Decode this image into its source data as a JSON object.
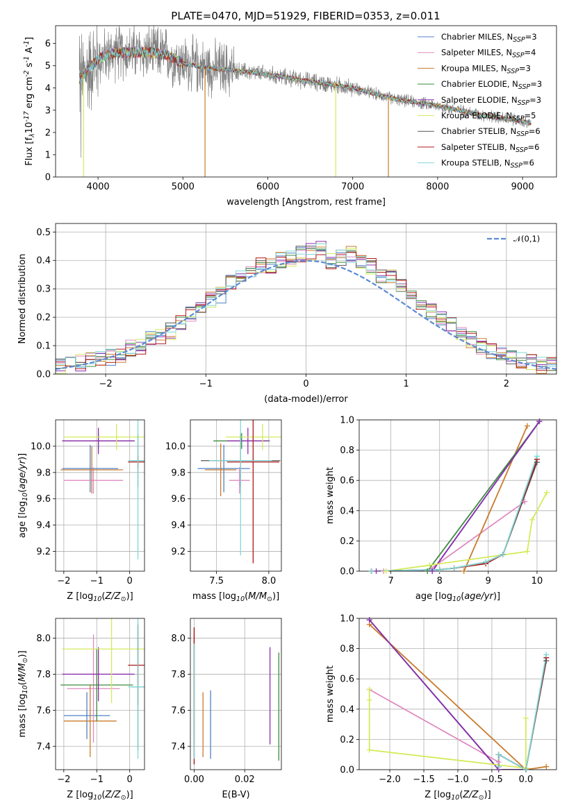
{
  "title": "PLATE=0470, MJD=51929, FIBERID=0353, z=0.011",
  "series_meta": [
    {
      "name": "Chabrier MILES, N$_{SSP}$=3",
      "color": "#4f80c8"
    },
    {
      "name": "Salpeter MILES, N$_{SSP}$=4",
      "color": "#e08ac0"
    },
    {
      "name": "Kroupa MILES, N$_{SSP}$=3",
      "color": "#c97a2a"
    },
    {
      "name": "Chabrier ELODIE, N$_{SSP}$=3",
      "color": "#3d8a3d"
    },
    {
      "name": "Salpeter ELODIE, N$_{SSP}$=3",
      "color": "#8e2cb0"
    },
    {
      "name": "Kroupa ELODIE, N$_{SSP}$=5",
      "color": "#d4ea5a"
    },
    {
      "name": "Chabrier STELIB, N$_{SSP}$=6",
      "color": "#555555"
    },
    {
      "name": "Salpeter STELIB, N$_{SSP}$=6",
      "color": "#b01818"
    },
    {
      "name": "Kroupa STELIB, N$_{SSP}$=6",
      "color": "#7fd8d8"
    }
  ],
  "chart_data": [
    {
      "id": "spectrum",
      "type": "line",
      "xlabel": "wavelength [Angstrom, rest frame]",
      "ylabel": "Flux [f$_\\lambda$10$^{-17}$ erg cm$^{-2}$ s$^{-1}$ A$^{-1}$]",
      "xlim": [
        3500,
        9400
      ],
      "ylim": [
        0,
        6.8
      ],
      "xticks": [
        4000,
        5000,
        6000,
        7000,
        8000,
        9000
      ],
      "yticks": [
        0,
        1,
        2,
        3,
        4,
        5,
        6
      ],
      "grid": false,
      "legend": "upper right",
      "data_color": "#808080",
      "data_trend": {
        "x": [
          3780,
          3900,
          4000,
          4200,
          4400,
          4600,
          4800,
          5000,
          5300,
          5600,
          6000,
          6500,
          7000,
          7500,
          8000,
          8500,
          9000,
          9100
        ],
        "y": [
          4.4,
          4.9,
          5.3,
          5.6,
          5.6,
          5.6,
          5.5,
          5.1,
          4.9,
          4.8,
          4.6,
          4.3,
          4.0,
          3.5,
          3.2,
          2.8,
          2.5,
          2.4
        ]
      },
      "model_spikes": [
        {
          "x": 3830,
          "color": "#d4ea5a"
        },
        {
          "x": 5260,
          "color": "#c97a2a"
        },
        {
          "x": 6800,
          "color": "#d4ea5a"
        },
        {
          "x": 7420,
          "color": "#c97a2a"
        }
      ]
    },
    {
      "id": "residuals",
      "type": "line",
      "xlabel": "(data-model)/error",
      "ylabel": "Normed distribution",
      "xlim": [
        -2.5,
        2.5
      ],
      "ylim": [
        0,
        0.53
      ],
      "xticks": [
        -2,
        -1,
        0,
        1,
        2
      ],
      "xticklabels": [
        "−2",
        "−1",
        "0",
        "1",
        "2"
      ],
      "yticks": [
        0.0,
        0.1,
        0.2,
        0.3,
        0.4,
        0.5
      ],
      "yticklabels": [
        "0.0",
        "0.1",
        "0.2",
        "0.3",
        "0.4",
        "0.5"
      ],
      "grid": true,
      "legend": "upper right",
      "gaussian_label": "$\\mathcal{N}(0,1)$",
      "gaussian_color": "#5b8ad4",
      "hist_bin_edges": [
        -2.5,
        -2.4,
        -2.3,
        -2.2,
        -2.1,
        -2.0,
        -1.9,
        -1.8,
        -1.7,
        -1.6,
        -1.5,
        -1.4,
        -1.3,
        -1.2,
        -1.1,
        -1.0,
        -0.9,
        -0.8,
        -0.7,
        -0.6,
        -0.5,
        -0.4,
        -0.3,
        -0.2,
        -0.1,
        0.0,
        0.1,
        0.2,
        0.3,
        0.4,
        0.5,
        0.6,
        0.7,
        0.8,
        0.9,
        1.0,
        1.1,
        1.2,
        1.3,
        1.4,
        1.5,
        1.6,
        1.7,
        1.8,
        1.9,
        2.0,
        2.1,
        2.2,
        2.3,
        2.4,
        2.5
      ],
      "hist_density": [
        0.03,
        0.03,
        0.04,
        0.05,
        0.06,
        0.06,
        0.07,
        0.09,
        0.1,
        0.12,
        0.13,
        0.15,
        0.18,
        0.21,
        0.24,
        0.26,
        0.28,
        0.32,
        0.35,
        0.36,
        0.38,
        0.38,
        0.4,
        0.41,
        0.42,
        0.43,
        0.44,
        0.4,
        0.41,
        0.42,
        0.4,
        0.38,
        0.35,
        0.34,
        0.31,
        0.27,
        0.25,
        0.22,
        0.2,
        0.17,
        0.14,
        0.12,
        0.1,
        0.08,
        0.07,
        0.06,
        0.05,
        0.04,
        0.03,
        0.03
      ]
    },
    {
      "id": "age-vs-Z",
      "type": "scatter",
      "xlabel": "Z [log$_{10}$($Z/Z_\\odot$)]",
      "ylabel": "age  [log$_{10}$($age/yr$)]",
      "xlim": [
        -2.25,
        0.45
      ],
      "ylim": [
        9.05,
        10.2
      ],
      "xticks": [
        -2,
        -1,
        0
      ],
      "xticklabels": [
        "−2",
        "−1",
        "0"
      ],
      "yticks": [
        9.2,
        9.4,
        9.6,
        9.8,
        10.0
      ],
      "yticklabels": [
        "9.2",
        "9.4",
        "9.6",
        "9.8",
        "10.0"
      ],
      "grid": true,
      "points": [
        {
          "s": 0,
          "x": -1.2,
          "y": 9.83,
          "xerr": 0.85,
          "yerr": 0.18
        },
        {
          "s": 1,
          "x": -1.1,
          "y": 9.74,
          "xerr": 0.9,
          "yerr": 0.1
        },
        {
          "s": 2,
          "x": -1.15,
          "y": 9.82,
          "xerr": 0.95,
          "yerr": 0.18
        },
        {
          "s": 3,
          "x": -0.95,
          "y": 10.04,
          "xerr": 1.1,
          "yerr": 0.06
        },
        {
          "s": 4,
          "x": -0.95,
          "y": 10.04,
          "xerr": 1.1,
          "yerr": 0.1
        },
        {
          "s": 5,
          "x": -0.4,
          "y": 10.07,
          "xerr": 1.6,
          "yerr": 0.1
        },
        {
          "s": 6,
          "x": 0.25,
          "y": 9.89,
          "xerr": 0.25,
          "yerr": 0.2
        },
        {
          "s": 7,
          "x": 0.25,
          "y": 9.88,
          "xerr": 0.3,
          "yerr": 0.05
        },
        {
          "s": 8,
          "x": 0.25,
          "y": 9.89,
          "xerr": 0.3,
          "yerr": 0.75
        }
      ]
    },
    {
      "id": "age-vs-mass",
      "type": "scatter",
      "xlabel": "mass [log$_{10}$($M/M_\\odot$)]",
      "ylabel": "",
      "xlim": [
        7.25,
        8.12
      ],
      "ylim": [
        9.05,
        10.2
      ],
      "xticks": [
        7.5,
        8.0
      ],
      "xticklabels": [
        "7.5",
        "8.0"
      ],
      "yticks": [
        9.2,
        9.4,
        9.6,
        9.8,
        10.0
      ],
      "yticklabels": [
        "9.2",
        "9.4",
        "9.6",
        "9.8",
        "10.0"
      ],
      "grid": true,
      "points": [
        {
          "s": 0,
          "x": 7.57,
          "y": 9.83,
          "xerr": 0.25,
          "yerr": 0.18
        },
        {
          "s": 1,
          "x": 7.72,
          "y": 9.74,
          "xerr": 0.1,
          "yerr": 0.1
        },
        {
          "s": 2,
          "x": 7.54,
          "y": 9.82,
          "xerr": 0.15,
          "yerr": 0.2
        },
        {
          "s": 3,
          "x": 7.74,
          "y": 10.04,
          "xerr": 0.27,
          "yerr": 0.06
        },
        {
          "s": 4,
          "x": 7.8,
          "y": 10.04,
          "xerr": 0.2,
          "yerr": 0.1
        },
        {
          "s": 5,
          "x": 7.94,
          "y": 10.07,
          "xerr": 0.35,
          "yerr": 0.1
        },
        {
          "s": 6,
          "x": 7.73,
          "y": 9.89,
          "xerr": 0.38,
          "yerr": 0.2
        },
        {
          "s": 7,
          "x": 7.85,
          "y": 9.88,
          "xerr": 0.25,
          "yerr": 0.77
        },
        {
          "s": 8,
          "x": 7.73,
          "y": 9.89,
          "xerr": 0.3,
          "yerr": 0.72
        }
      ]
    },
    {
      "id": "weight-vs-age",
      "type": "line",
      "xlabel": "age  [log$_{10}$($age/yr$)]",
      "ylabel": "mass weight",
      "xlim": [
        6.35,
        10.4
      ],
      "ylim": [
        0,
        1.0
      ],
      "xticks": [
        7,
        8,
        9,
        10
      ],
      "xticklabels": [
        "7",
        "8",
        "9",
        "10"
      ],
      "yticks": [
        0.0,
        0.2,
        0.4,
        0.6,
        0.8,
        1.0
      ],
      "yticklabels": [
        "0.0",
        "0.2",
        "0.4",
        "0.6",
        "0.8",
        "1.0"
      ],
      "grid": true,
      "series": [
        {
          "s": 0,
          "x": [
            7.85,
            10.05
          ],
          "y": [
            0.0,
            0.99
          ]
        },
        {
          "s": 1,
          "x": [
            6.85,
            7.75,
            9.75
          ],
          "y": [
            0.0,
            0.0,
            0.46
          ]
        },
        {
          "s": 2,
          "x": [
            8.5,
            9.8
          ],
          "y": [
            0.0,
            0.96
          ]
        },
        {
          "s": 3,
          "x": [
            7.75,
            10.05
          ],
          "y": [
            0.0,
            0.99
          ]
        },
        {
          "s": 4,
          "x": [
            6.7,
            7.85,
            10.05
          ],
          "y": [
            0.0,
            0.0,
            0.99
          ]
        },
        {
          "s": 5,
          "x": [
            6.9,
            7.8,
            9.8,
            9.9,
            10.2
          ],
          "y": [
            0.0,
            0.04,
            0.13,
            0.34,
            0.52
          ]
        },
        {
          "s": 6,
          "x": [
            6.6,
            8.0,
            8.3,
            8.95,
            9.3,
            10.0
          ],
          "y": [
            0.0,
            0.01,
            0.02,
            0.06,
            0.11,
            0.72
          ]
        },
        {
          "s": 7,
          "x": [
            6.6,
            8.0,
            8.3,
            8.95,
            9.3,
            10.0
          ],
          "y": [
            0.0,
            0.01,
            0.02,
            0.05,
            0.11,
            0.74
          ]
        },
        {
          "s": 8,
          "x": [
            6.6,
            8.0,
            8.3,
            8.95,
            9.3,
            10.0
          ],
          "y": [
            0.0,
            0.01,
            0.02,
            0.06,
            0.11,
            0.76
          ]
        }
      ]
    },
    {
      "id": "mass-vs-Z",
      "type": "scatter",
      "xlabel": "Z [log$_{10}$($Z/Z_\\odot$)]",
      "ylabel": "mass [log$_{10}$($M/M_\\odot$)]",
      "xlim": [
        -2.25,
        0.45
      ],
      "ylim": [
        7.27,
        8.11
      ],
      "xticks": [
        -2,
        -1,
        0
      ],
      "xticklabels": [
        "−2",
        "−1",
        "0"
      ],
      "yticks": [
        7.4,
        7.6,
        7.8,
        8.0
      ],
      "yticklabels": [
        "7.4",
        "7.6",
        "7.8",
        "8.0"
      ],
      "grid": true,
      "points": [
        {
          "s": 0,
          "x": -1.3,
          "y": 7.57,
          "xerr": 0.7,
          "yerr": 0.13
        },
        {
          "s": 1,
          "x": -1.1,
          "y": 7.72,
          "xerr": 0.8,
          "yerr": 0.3
        },
        {
          "s": 2,
          "x": -1.2,
          "y": 7.54,
          "xerr": 0.8,
          "yerr": 0.2
        },
        {
          "s": 3,
          "x": -1.0,
          "y": 7.74,
          "xerr": 1.1,
          "yerr": 0.2
        },
        {
          "s": 4,
          "x": -0.95,
          "y": 7.8,
          "xerr": 1.1,
          "yerr": 0.15
        },
        {
          "s": 5,
          "x": -0.55,
          "y": 7.94,
          "xerr": 1.5,
          "yerr": 0.3
        },
        {
          "s": 6,
          "x": 0.25,
          "y": 7.73,
          "xerr": 0.2,
          "yerr": 0.35
        },
        {
          "s": 7,
          "x": 0.25,
          "y": 7.85,
          "xerr": 0.3,
          "yerr": 0.22
        },
        {
          "s": 8,
          "x": 0.25,
          "y": 7.73,
          "xerr": 0.3,
          "yerr": 0.4
        }
      ]
    },
    {
      "id": "mass-vs-EBV",
      "type": "scatter",
      "xlabel": "E(B-V)",
      "ylabel": "",
      "xlim": [
        -0.0015,
        0.0345
      ],
      "ylim": [
        7.27,
        8.11
      ],
      "xticks": [
        0.0,
        0.02
      ],
      "xticklabels": [
        "0.00",
        "0.02"
      ],
      "yticks": [
        7.4,
        7.6,
        7.8,
        8.0
      ],
      "yticklabels": [
        "7.4",
        "7.6",
        "7.8",
        "8.0"
      ],
      "grid": true,
      "points": [
        {
          "s": 0,
          "x": 0.0065,
          "y": 7.52,
          "xerr": 0,
          "yerr": 0.19
        },
        {
          "s": 1,
          "x": 0.0,
          "y": 7.72,
          "xerr": 0,
          "yerr": 0.3
        },
        {
          "s": 2,
          "x": 0.0035,
          "y": 7.52,
          "xerr": 0,
          "yerr": 0.18
        },
        {
          "s": 3,
          "x": 0.0335,
          "y": 7.62,
          "xerr": 0,
          "yerr": 0.3
        },
        {
          "s": 4,
          "x": 0.03,
          "y": 7.68,
          "xerr": 0,
          "yerr": 0.27
        },
        {
          "s": 5,
          "x": 0.0,
          "y": 7.75,
          "xerr": 0,
          "yerr": 0.25
        },
        {
          "s": 6,
          "x": 0.0,
          "y": 7.68,
          "xerr": 0,
          "yerr": 0.38
        },
        {
          "s": 7,
          "x": 0.0,
          "y": 7.68,
          "xerr": 0,
          "yerr": 0.38
        },
        {
          "s": 8,
          "x": 0.0,
          "y": 7.65,
          "xerr": 0,
          "yerr": 0.32
        }
      ]
    },
    {
      "id": "weight-vs-Z",
      "type": "line",
      "xlabel": "Z [log$_{10}$($Z/Z_\\odot$)]",
      "ylabel": "mass weight",
      "xlim": [
        -2.45,
        0.45
      ],
      "ylim": [
        0,
        1.0
      ],
      "xticks": [
        -2.0,
        -1.5,
        -1.0,
        -0.5,
        0.0
      ],
      "xticklabels": [
        "−2.0",
        "−1.5",
        "−1.0",
        "−0.5",
        "0.0"
      ],
      "yticks": [
        0.0,
        0.2,
        0.4,
        0.6,
        0.8,
        1.0
      ],
      "yticklabels": [
        "0.0",
        "0.2",
        "0.4",
        "0.6",
        "0.8",
        "1.0"
      ],
      "grid": true,
      "series": [
        {
          "s": 0,
          "x": [
            -2.3,
            -0.4,
            0.0
          ],
          "y": [
            0.99,
            0.0,
            0.0
          ]
        },
        {
          "s": 1,
          "x": [
            -2.3,
            -0.4,
            -0.4,
            0.0
          ],
          "y": [
            0.53,
            0.05,
            0.0,
            0.0
          ]
        },
        {
          "s": 2,
          "x": [
            -2.3,
            0.0,
            0.3
          ],
          "y": [
            0.96,
            0.0,
            0.02
          ]
        },
        {
          "s": 3,
          "x": [
            -2.3,
            -0.4,
            0.0
          ],
          "y": [
            0.99,
            0.0,
            0.0
          ]
        },
        {
          "s": 4,
          "x": [
            -2.3,
            -0.4,
            0.0
          ],
          "y": [
            0.99,
            0.0,
            0.0
          ]
        },
        {
          "s": 5,
          "x": [
            -2.3,
            -2.3,
            -2.3,
            0.0,
            0.0
          ],
          "y": [
            0.53,
            0.46,
            0.13,
            0.01,
            0.34
          ]
        },
        {
          "s": 6,
          "x": [
            -0.4,
            -0.4,
            0.0,
            0.3
          ],
          "y": [
            0.02,
            0.1,
            0.0,
            0.72
          ]
        },
        {
          "s": 7,
          "x": [
            -0.4,
            -0.4,
            0.0,
            0.3
          ],
          "y": [
            0.02,
            0.1,
            0.0,
            0.74
          ]
        },
        {
          "s": 8,
          "x": [
            -0.4,
            -0.4,
            0.0,
            0.3
          ],
          "y": [
            0.02,
            0.1,
            0.0,
            0.76
          ]
        }
      ]
    }
  ]
}
